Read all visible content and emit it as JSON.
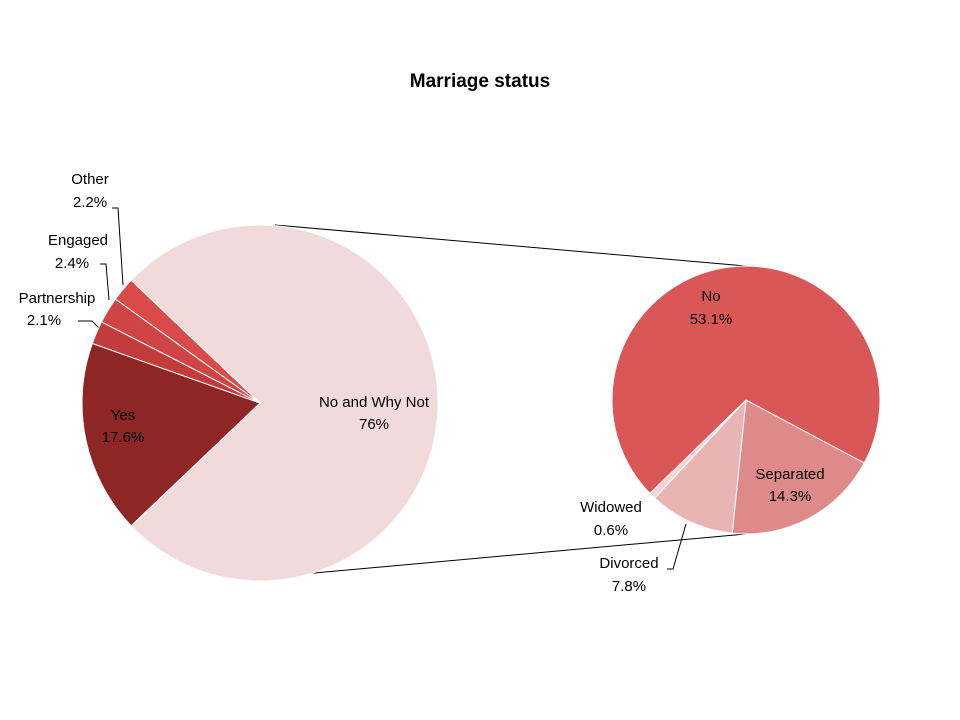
{
  "chart_data": {
    "type": "pie-of-pie",
    "title": "Marriage status",
    "main": {
      "categories": [
        "No and Why Not",
        "Yes",
        "Partnership",
        "Engaged",
        "Other"
      ],
      "values": [
        76,
        17.6,
        2.1,
        2.4,
        2.2
      ],
      "value_labels": [
        "76%",
        "17.6%",
        "2.1%",
        "2.4%",
        "2.2%"
      ],
      "colors": [
        "#f2dada",
        "#8e2626",
        "#c23c3c",
        "#cf4444",
        "#d94a4a"
      ]
    },
    "secondary": {
      "categories": [
        "Separated",
        "Divorced",
        "Widowed",
        "No"
      ],
      "values": [
        14.3,
        7.8,
        0.6,
        53.1
      ],
      "value_labels": [
        "14.3%",
        "7.8%",
        "0.6%",
        "53.1%"
      ],
      "colors": [
        "#df8a8a",
        "#e8b4b4",
        "#f2d4d4",
        "#d95757"
      ]
    }
  }
}
